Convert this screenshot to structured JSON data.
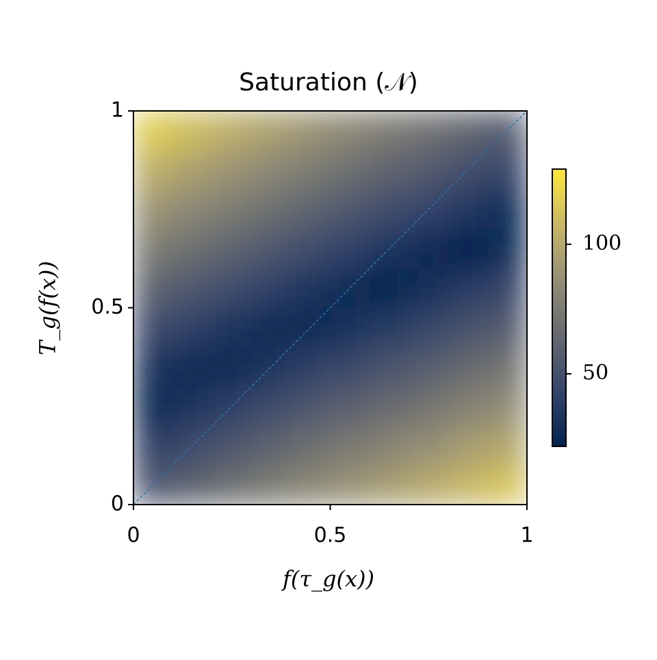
{
  "chart_data": {
    "type": "heatmap",
    "title": "Saturation (𝒩)",
    "xlabel": "f(τ_g(x))",
    "ylabel": "T_g(f(x))",
    "x": [
      0.05,
      0.15,
      0.25,
      0.35,
      0.45,
      0.55,
      0.65,
      0.75,
      0.85,
      0.95
    ],
    "y": [
      0.05,
      0.15,
      0.25,
      0.35,
      0.45,
      0.55,
      0.65,
      0.75,
      0.85,
      0.95
    ],
    "z": [
      [
        54,
        61,
        68,
        75,
        82,
        88,
        94,
        100,
        107,
        113
      ],
      [
        40,
        47,
        54,
        61,
        68,
        74,
        80,
        86,
        93,
        99
      ],
      [
        26,
        33,
        40,
        47,
        54,
        60,
        66,
        72,
        79,
        85
      ],
      [
        33,
        26,
        26,
        33,
        40,
        46,
        52,
        58,
        65,
        71
      ],
      [
        47,
        40,
        33,
        26,
        26,
        32,
        38,
        44,
        51,
        57
      ],
      [
        61,
        54,
        47,
        40,
        33,
        26,
        24,
        30,
        37,
        43
      ],
      [
        75,
        68,
        61,
        54,
        47,
        40,
        34,
        28,
        23,
        29
      ],
      [
        89,
        82,
        75,
        68,
        61,
        54,
        48,
        42,
        35,
        29
      ],
      [
        103,
        96,
        89,
        82,
        75,
        68,
        62,
        56,
        49,
        43
      ],
      [
        117,
        110,
        103,
        96,
        89,
        82,
        76,
        70,
        63,
        57
      ]
    ],
    "xlim": [
      0,
      1
    ],
    "ylim": [
      0,
      1
    ],
    "xticks": [
      0,
      0.5,
      1
    ],
    "yticks": [
      0,
      0.5,
      1
    ],
    "colormap": [
      "#00224e",
      "#35456c",
      "#666970",
      "#948e77",
      "#c8b866",
      "#fee838"
    ],
    "clim": [
      22,
      129
    ],
    "cticks": [
      50,
      100
    ],
    "diagonal": true,
    "diagonal_color": "#1f77b4"
  }
}
